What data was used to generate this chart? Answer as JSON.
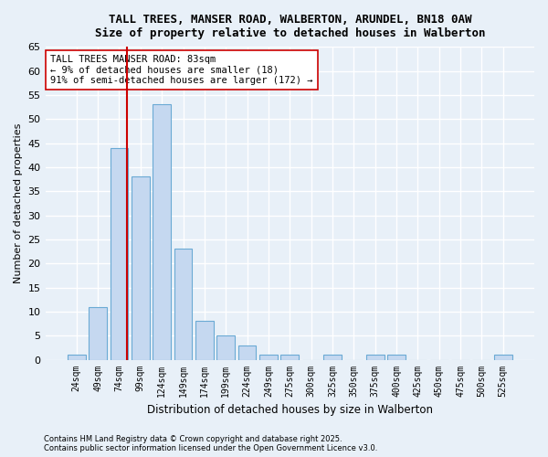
{
  "title1": "TALL TREES, MANSER ROAD, WALBERTON, ARUNDEL, BN18 0AW",
  "title2": "Size of property relative to detached houses in Walberton",
  "xlabel": "Distribution of detached houses by size in Walberton",
  "ylabel": "Number of detached properties",
  "categories": [
    "24sqm",
    "49sqm",
    "74sqm",
    "99sqm",
    "124sqm",
    "149sqm",
    "174sqm",
    "199sqm",
    "224sqm",
    "249sqm",
    "275sqm",
    "300sqm",
    "325sqm",
    "350sqm",
    "375sqm",
    "400sqm",
    "425sqm",
    "450sqm",
    "475sqm",
    "500sqm",
    "525sqm"
  ],
  "values": [
    1,
    11,
    44,
    38,
    53,
    23,
    8,
    5,
    3,
    1,
    1,
    0,
    1,
    0,
    1,
    1,
    0,
    0,
    0,
    0,
    1
  ],
  "bar_color": "#c5d8f0",
  "bar_edge_color": "#6aaad4",
  "vline_color": "#cc0000",
  "vline_x": 2.36,
  "annotation_title": "TALL TREES MANSER ROAD: 83sqm",
  "annotation_line1": "← 9% of detached houses are smaller (18)",
  "annotation_line2": "91% of semi-detached houses are larger (172) →",
  "ylim": [
    0,
    65
  ],
  "yticks": [
    0,
    5,
    10,
    15,
    20,
    25,
    30,
    35,
    40,
    45,
    50,
    55,
    60,
    65
  ],
  "footer1": "Contains HM Land Registry data © Crown copyright and database right 2025.",
  "footer2": "Contains public sector information licensed under the Open Government Licence v3.0.",
  "bg_color": "#e8f0f8",
  "grid_color": "#ffffff"
}
